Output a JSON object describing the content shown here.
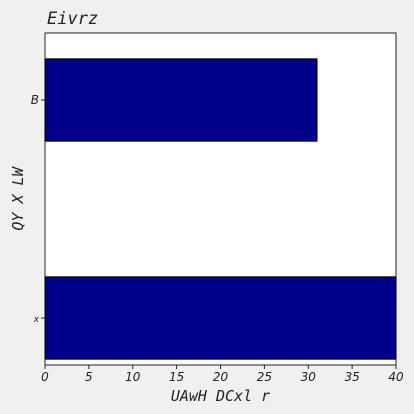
{
  "chart_data": {
    "type": "bar",
    "orientation": "horizontal",
    "title": "Eivrz",
    "xlabel": "UAwH DCxl r",
    "ylabel": "QY X LW",
    "categories": [
      "B",
      "x"
    ],
    "values": [
      31,
      40
    ],
    "xlim": [
      0,
      40
    ],
    "xticks": [
      0,
      5,
      10,
      15,
      20,
      25,
      30,
      35,
      40
    ],
    "grid": false,
    "bar_color": "#00008b",
    "background_color": "#f0f0f0",
    "plot_background_color": "#ffffff"
  }
}
